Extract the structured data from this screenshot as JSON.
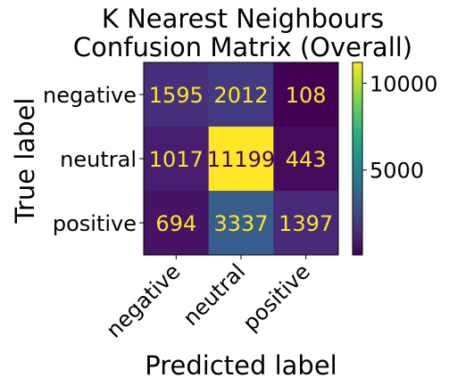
{
  "chart_data": {
    "type": "heatmap",
    "title_lines": [
      "K Nearest Neighbours",
      "Confusion Matrix (Overall)"
    ],
    "xlabel": "Predicted label",
    "ylabel": "True label",
    "x_categories": [
      "negative",
      "neutral",
      "positive"
    ],
    "y_categories": [
      "negative",
      "neutral",
      "positive"
    ],
    "values": [
      [
        1595,
        2012,
        108
      ],
      [
        1017,
        11199,
        443
      ],
      [
        694,
        3337,
        1397
      ]
    ],
    "colormap": "viridis",
    "color_range": [
      108,
      11199
    ],
    "colorbar_ticks": [
      5000,
      10000
    ],
    "text_color_light": "#fde725",
    "text_color_dark": "#440154"
  }
}
